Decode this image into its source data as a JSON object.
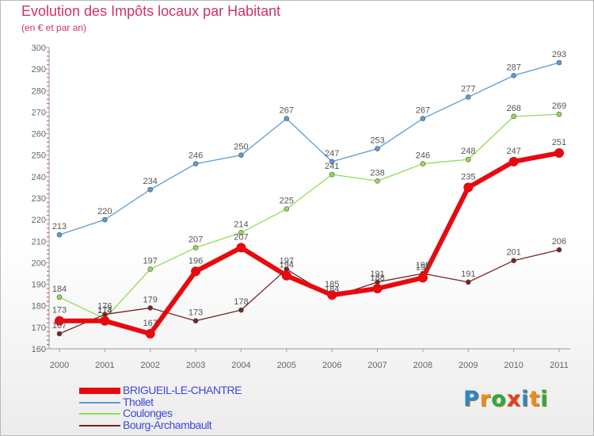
{
  "header": {
    "title": "Evolution des Impôts locaux par Habitant",
    "subtitle": "(en € et par an)"
  },
  "chart_data": {
    "type": "line",
    "title": "Evolution des Impôts locaux par Habitant",
    "subtitle": "(en € et par an)",
    "xlabel": "",
    "ylabel": "",
    "ylim": [
      160,
      300
    ],
    "yticks": [
      160,
      170,
      180,
      190,
      200,
      210,
      220,
      230,
      240,
      250,
      260,
      270,
      280,
      290,
      300
    ],
    "grid": false,
    "legend_position": "bottom-left",
    "categories": [
      "2000",
      "2001",
      "2002",
      "2003",
      "2004",
      "2005",
      "2006",
      "2007",
      "2008",
      "2009",
      "2010",
      "2011"
    ],
    "series": [
      {
        "name": "Thollet",
        "color": "#5b9bd5",
        "values": [
          213,
          220,
          234,
          246,
          250,
          267,
          247,
          253,
          267,
          277,
          287,
          293
        ]
      },
      {
        "name": "Coulonges",
        "color": "#8fdd55",
        "values": [
          184,
          174,
          197,
          207,
          214,
          225,
          241,
          238,
          246,
          248,
          268,
          269
        ]
      },
      {
        "name": "Bourg-Archambault",
        "color": "#7a2424",
        "values": [
          167,
          176,
          179,
          173,
          178,
          197,
          184,
          191,
          195,
          191,
          201,
          206
        ]
      },
      {
        "name": "BRIGUEIL-LE-CHANTRE",
        "color": "#e8090e",
        "values": [
          173,
          173,
          167,
          196,
          207,
          194,
          185,
          188,
          193,
          235,
          247,
          251
        ]
      }
    ],
    "legend_order": [
      "BRIGUEIL-LE-CHANTRE",
      "Thollet",
      "Coulonges",
      "Bourg-Archambault"
    ]
  },
  "logo": {
    "letters": [
      "P",
      "r",
      "o",
      "x",
      "i",
      "t",
      "i"
    ],
    "colors": [
      "c1",
      "c2",
      "c3",
      "c4",
      "c1",
      "c2",
      "c3"
    ]
  }
}
